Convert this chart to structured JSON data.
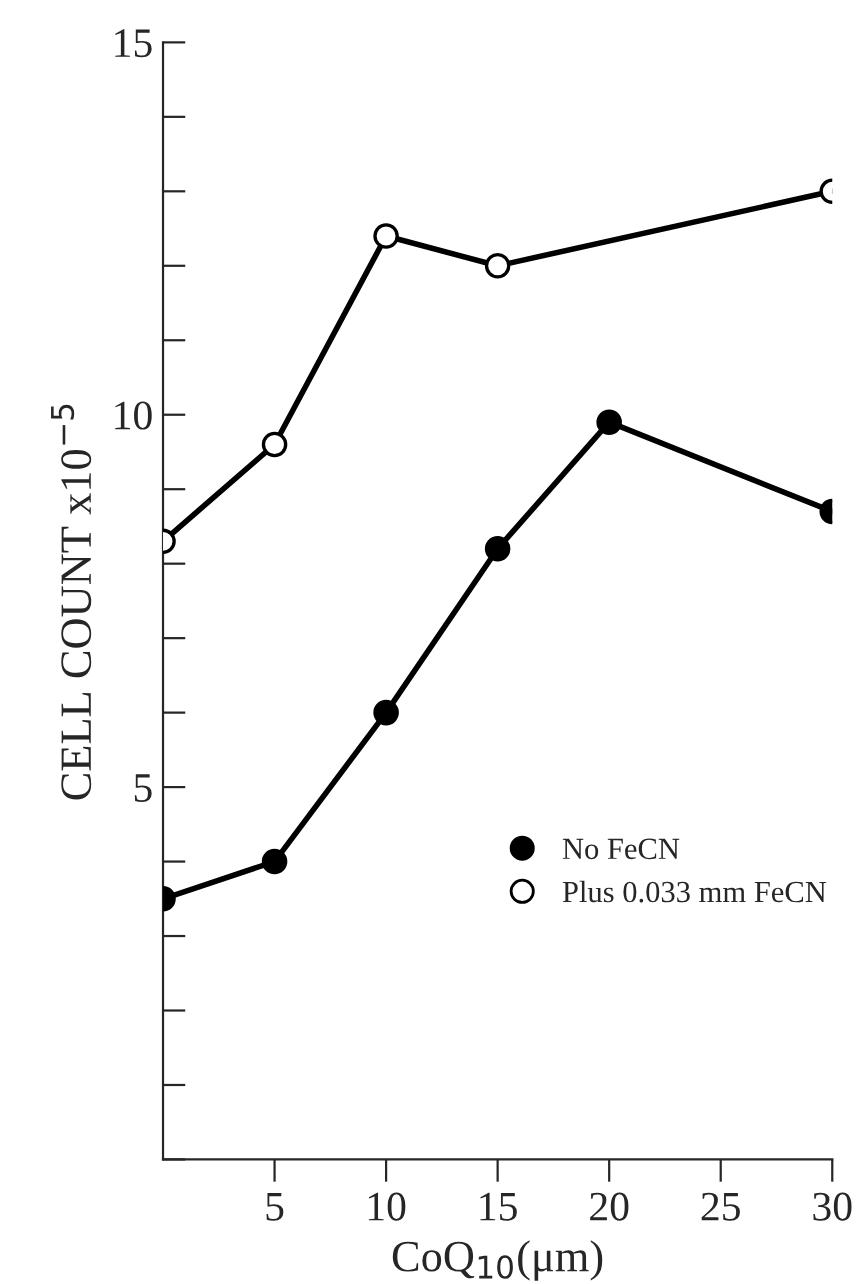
{
  "chart_data": {
    "type": "line",
    "xlabel": "CoQ$_{10}$(μm)",
    "ylabel": "CELL COUNT x10$^{−5}$",
    "series": [
      {
        "name": "No FeCN",
        "color": "#000000",
        "x": [
          0,
          5,
          10,
          15,
          20,
          30
        ],
        "values": [
          3.5,
          4.0,
          6.0,
          8.2,
          9.9,
          8.7
        ]
      },
      {
        "name": "Plus 0.033 mm FeCN",
        "color": "#ffffff",
        "x": [
          0,
          5,
          10,
          15,
          30
        ],
        "values": [
          8.3,
          9.6,
          12.4,
          12.0,
          13.0
        ]
      }
    ],
    "xlim": [
      0,
      30
    ],
    "xticks": [
      5,
      10,
      15,
      20,
      25,
      30
    ],
    "ylim": [
      0,
      15
    ],
    "yticks": [
      {
        "value": 0,
        "label": null
      },
      {
        "value": 1,
        "label": null
      },
      {
        "value": 2,
        "label": null
      },
      {
        "value": 3,
        "label": null
      },
      {
        "value": 4,
        "label": null
      },
      5,
      {
        "value": 6,
        "label": null
      },
      {
        "value": 7,
        "label": null
      },
      {
        "value": 8,
        "label": null
      },
      {
        "value": 9,
        "label": null
      },
      10,
      {
        "value": 11,
        "label": null
      },
      {
        "value": 12,
        "label": null
      },
      {
        "value": 13,
        "label": null
      },
      {
        "value": 14,
        "label": null
      },
      15
    ],
    "marker": "circle",
    "line_style": "solid",
    "grid": false,
    "legend": "bottom right"
  }
}
